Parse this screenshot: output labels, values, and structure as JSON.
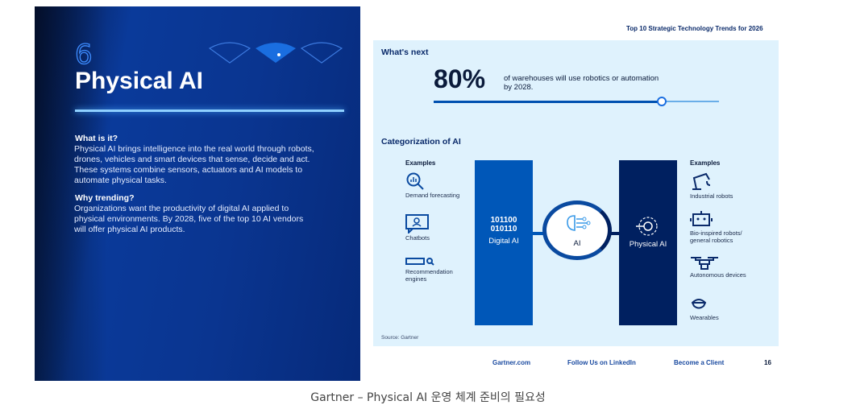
{
  "left": {
    "number": "6",
    "title": "Physical AI",
    "what_heading": "What is it?",
    "what_lines": [
      "Physical AI brings intelligence into the real world through robots,",
      "drones, vehicles and smart devices that sense, decide and act.",
      "These systems combine sensors, actuators and AI models to",
      "automate physical tasks."
    ],
    "why_heading": "Why trending?",
    "why_lines": [
      "Organizations want the productivity of digital AI applied to",
      "physical environments. By 2028, five of the top 10 AI vendors",
      "will offer physical AI products."
    ]
  },
  "header": {
    "doc_title": "Top 10 Strategic Technology Trends for 2026"
  },
  "whats_next": {
    "heading": "What's next",
    "stat": "80%",
    "stat_text_lines": [
      "of warehouses will use robotics or automation",
      "by 2028."
    ],
    "progress_percent": 80
  },
  "categorization": {
    "heading": "Categorization of AI",
    "left_examples_label": "Examples",
    "left_examples": [
      {
        "icon": "demand-forecast-icon",
        "label": "Demand forecasting"
      },
      {
        "icon": "chatbot-icon",
        "label": "Chatbots"
      },
      {
        "icon": "recommendation-icon",
        "label": "Recommendation engines"
      }
    ],
    "digital_binary": [
      "101100",
      "010110"
    ],
    "digital_label": "Digital AI",
    "center_label": "AI",
    "physical_label": "Physical AI",
    "right_examples_label": "Examples",
    "right_examples": [
      {
        "icon": "industrial-robot-icon",
        "label": "Industrial robots"
      },
      {
        "icon": "robot-head-icon",
        "label": "Bio-inspired robots/ general robotics"
      },
      {
        "icon": "drone-icon",
        "label": "Autonomous devices"
      },
      {
        "icon": "wearable-icon",
        "label": "Wearables"
      }
    ],
    "source": "Source: Gartner"
  },
  "footer": {
    "links": [
      "Gartner.com",
      "Follow Us on LinkedIn",
      "Become a Client"
    ],
    "page": "16"
  },
  "caption": "Gartner – Physical AI 운영 체계 준비의 필요성",
  "colors": {
    "dark_navy": "#062a7a",
    "digital_blue": "#0057b8",
    "physical_navy": "#002060",
    "panel_bg": "#dff2fd"
  }
}
